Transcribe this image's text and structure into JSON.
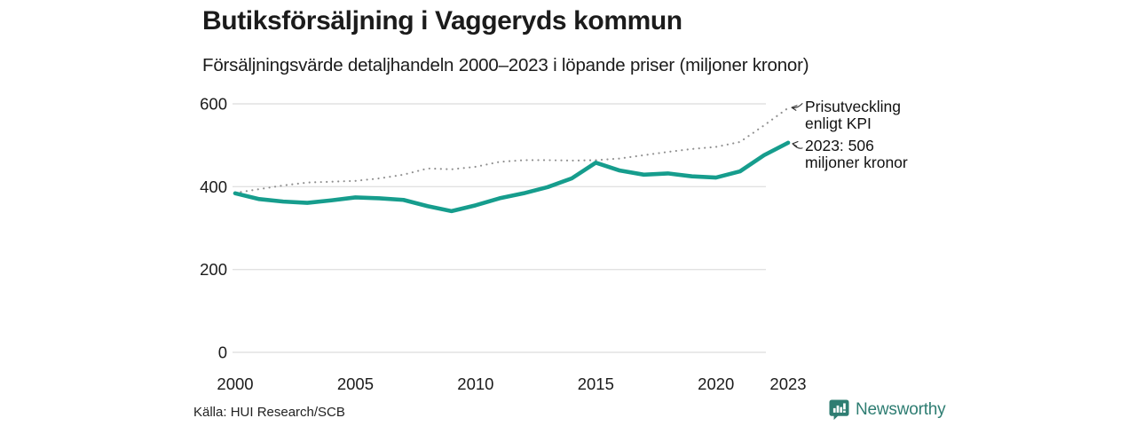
{
  "header": {
    "title": "Butiksförsäljning i Vaggeryds kommun",
    "subtitle": "Försäljningsvärde detaljhandeln 2000–2023 i löpande priser (miljoner kronor)"
  },
  "annotations": {
    "kpi_line1": "Prisutveckling",
    "kpi_line2": "enligt KPI",
    "latest_line1": "2023: 506",
    "latest_line2": "miljoner kronor"
  },
  "footer": {
    "source": "Källa: HUI Research/SCB"
  },
  "logo": {
    "text": "Newsworthy",
    "icon": "bar-chart-speech-bubble-icon"
  },
  "colors": {
    "sales_line": "#169d8d",
    "kpi_line": "#8f8f8f",
    "grid": "#e2e2e2",
    "text": "#1b1b1b",
    "arrow": "#333333",
    "logo": "#2e7d72"
  },
  "chart_data": {
    "type": "line",
    "title": "Butiksförsäljning i Vaggeryds kommun",
    "subtitle": "Försäljningsvärde detaljhandeln 2000–2023 i löpande priser (miljoner kronor)",
    "xlabel": "",
    "ylabel": "",
    "grid": "horizontal",
    "legend_position": "right-annotations",
    "x": [
      2000,
      2001,
      2002,
      2003,
      2004,
      2005,
      2006,
      2007,
      2008,
      2009,
      2010,
      2011,
      2012,
      2013,
      2014,
      2015,
      2016,
      2017,
      2018,
      2019,
      2020,
      2021,
      2022,
      2023
    ],
    "xticks": [
      2000,
      2005,
      2010,
      2015,
      2020,
      2023
    ],
    "yticks": [
      0,
      200,
      400,
      600
    ],
    "ylim": [
      0,
      600
    ],
    "xlim": [
      2000,
      2023
    ],
    "series": [
      {
        "name": "Försäljningsvärde detaljhandeln (miljoner kronor)",
        "style": "solid",
        "color": "#169d8d",
        "values": [
          384,
          370,
          364,
          361,
          367,
          374,
          372,
          368,
          353,
          341,
          355,
          372,
          384,
          399,
          420,
          458,
          439,
          429,
          432,
          425,
          422,
          437,
          476,
          506
        ]
      },
      {
        "name": "Prisutveckling enligt KPI",
        "style": "dotted",
        "color": "#8f8f8f",
        "values": [
          385,
          394,
          403,
          410,
          412,
          414,
          420,
          429,
          444,
          442,
          448,
          460,
          464,
          464,
          463,
          464,
          468,
          476,
          484,
          491,
          496,
          508,
          548,
          590
        ]
      }
    ],
    "end_label_2023": "2023: 506 miljoner kronor"
  }
}
